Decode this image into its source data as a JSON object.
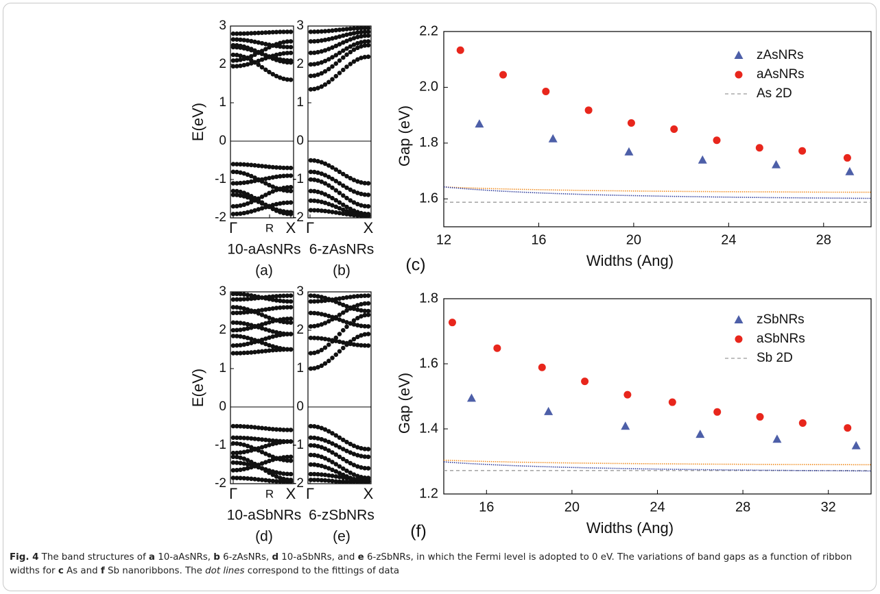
{
  "caption": {
    "fig_label": "Fig. 4",
    "t1": " The band structures of ",
    "l1": "a",
    "t2": " 10-aAsNRs, ",
    "l2": "b",
    "t3": " 6-zAsNRs, ",
    "l3": "d",
    "t4": " 10-aSbNRs, and ",
    "l4": "e",
    "t5": " 6-zSbNRs, in which the Fermi level is adopted to 0 eV. The variations of band gaps as a function of ribbon widths for ",
    "l5": "c",
    "t6": " As and ",
    "l6": "f",
    "t7": " Sb nanoribbons. The ",
    "emph": "dot lines",
    "t8": " correspond to the fittings of data"
  },
  "chart_data": [
    {
      "type": "scatter",
      "panel": "(a)",
      "name": "10-aAsNRs",
      "ylabel": "E(eV)",
      "ylim": [
        -2,
        3
      ],
      "yticks": [
        -2,
        -1,
        0,
        1,
        2,
        3
      ],
      "xticks": [
        "Γ",
        "R",
        "X"
      ],
      "fermi_level": 0,
      "bands_conduction": [
        [
          1.95,
          2.3
        ],
        [
          2.25,
          1.6
        ],
        [
          2.45,
          2.1
        ],
        [
          2.65,
          2.45
        ],
        [
          2.8,
          2.85
        ],
        [
          2.5,
          2.05
        ],
        [
          2.1,
          2.6
        ]
      ],
      "bands_valence": [
        [
          -0.6,
          -0.7
        ],
        [
          -0.8,
          -1.3
        ],
        [
          -1.1,
          -0.9
        ],
        [
          -1.4,
          -1.85
        ],
        [
          -1.7,
          -1.2
        ],
        [
          -1.9,
          -1.6
        ],
        [
          -1.3,
          -1.9
        ]
      ]
    },
    {
      "type": "scatter",
      "panel": "(b)",
      "name": "6-zAsNRs",
      "ylim": [
        -2,
        3
      ],
      "yticks": [
        -2,
        -1,
        0,
        1,
        2,
        3
      ],
      "xticks": [
        "Γ",
        "X"
      ],
      "fermi_level": 0,
      "bands_conduction": [
        [
          1.35,
          2.2
        ],
        [
          1.7,
          2.5
        ],
        [
          2.0,
          2.6
        ],
        [
          2.3,
          2.75
        ],
        [
          2.6,
          2.85
        ],
        [
          2.85,
          2.95
        ]
      ],
      "bands_valence": [
        [
          -0.5,
          -1.1
        ],
        [
          -0.8,
          -1.4
        ],
        [
          -1.0,
          -1.7
        ],
        [
          -1.3,
          -1.9
        ],
        [
          -1.55,
          -1.95
        ],
        [
          -1.8,
          -1.95
        ]
      ]
    },
    {
      "type": "scatter",
      "panel": "(c)",
      "xlabel": "Widths (Ang)",
      "ylabel": "Gap (eV)",
      "xlim": [
        12,
        30
      ],
      "ylim": [
        1.5,
        2.2
      ],
      "xticks": [
        12,
        16,
        20,
        24,
        28
      ],
      "yticks": [
        1.6,
        1.8,
        2.0,
        2.2
      ],
      "legend_position": "top-right",
      "series": [
        {
          "name": "zAsNRs",
          "marker": "triangle",
          "color": "#4d5fa8",
          "x": [
            13.5,
            16.6,
            19.8,
            22.9,
            26.0,
            29.1
          ],
          "y": [
            1.868,
            1.815,
            1.768,
            1.739,
            1.722,
            1.697
          ]
        },
        {
          "name": "aAsNRs",
          "marker": "circle",
          "color": "#e8261c",
          "x": [
            12.7,
            14.5,
            16.3,
            18.1,
            19.9,
            21.7,
            23.5,
            25.3,
            27.1,
            29.0
          ],
          "y": [
            2.133,
            2.045,
            1.985,
            1.918,
            1.872,
            1.85,
            1.81,
            1.783,
            1.772,
            1.747
          ]
        },
        {
          "name": "As 2D",
          "style": "dashed",
          "color": "#999999",
          "y": 1.588
        }
      ],
      "fits": [
        {
          "for": "zAsNRs",
          "color": "#f08a1c",
          "a": 1.62,
          "b": 3.3
        },
        {
          "for": "aAsNRs",
          "color": "#2c3a9a",
          "a": 1.594,
          "b": 7.05
        }
      ]
    },
    {
      "type": "scatter",
      "panel": "(d)",
      "name": "10-aSbNRs",
      "ylabel": "E(eV)",
      "ylim": [
        -2,
        3
      ],
      "yticks": [
        -2,
        -1,
        0,
        1,
        2,
        3
      ],
      "xticks": [
        "Γ",
        "R",
        "X"
      ],
      "fermi_level": 0,
      "bands_conduction": [
        [
          1.4,
          1.5
        ],
        [
          1.6,
          1.9
        ],
        [
          1.85,
          1.5
        ],
        [
          2.0,
          2.3
        ],
        [
          2.2,
          1.9
        ],
        [
          2.45,
          2.6
        ],
        [
          2.6,
          2.2
        ],
        [
          2.8,
          2.9
        ],
        [
          2.95,
          2.75
        ]
      ],
      "bands_valence": [
        [
          -0.5,
          -0.6
        ],
        [
          -0.8,
          -0.9
        ],
        [
          -0.95,
          -1.4
        ],
        [
          -1.2,
          -0.9
        ],
        [
          -1.45,
          -1.75
        ],
        [
          -1.65,
          -1.3
        ],
        [
          -1.85,
          -1.95
        ],
        [
          -1.3,
          -1.9
        ]
      ]
    },
    {
      "type": "scatter",
      "panel": "(e)",
      "name": "6-zSbNRs",
      "ylim": [
        -2,
        3
      ],
      "yticks": [
        -2,
        -1,
        0,
        1,
        2,
        3
      ],
      "xticks": [
        "Γ",
        "X"
      ],
      "fermi_level": 0,
      "bands_conduction": [
        [
          1.0,
          1.9
        ],
        [
          1.4,
          2.4
        ],
        [
          1.8,
          1.6
        ],
        [
          2.1,
          2.7
        ],
        [
          2.45,
          2.1
        ],
        [
          2.75,
          2.9
        ],
        [
          2.9,
          2.5
        ]
      ],
      "bands_valence": [
        [
          -0.5,
          -1.1
        ],
        [
          -0.8,
          -1.3
        ],
        [
          -1.0,
          -1.6
        ],
        [
          -1.25,
          -1.85
        ],
        [
          -1.5,
          -1.95
        ],
        [
          -1.75,
          -1.9
        ],
        [
          -1.9,
          -2.0
        ]
      ]
    },
    {
      "type": "scatter",
      "panel": "(f)",
      "xlabel": "Widths (Ang)",
      "ylabel": "Gap (eV)",
      "xlim": [
        14,
        34
      ],
      "ylim": [
        1.2,
        1.8
      ],
      "xticks": [
        16,
        20,
        24,
        28,
        32
      ],
      "yticks": [
        1.2,
        1.4,
        1.6,
        1.8
      ],
      "legend_position": "top-right",
      "series": [
        {
          "name": "zSbNRs",
          "marker": "triangle",
          "color": "#4d5fa8",
          "x": [
            15.3,
            18.9,
            22.5,
            26.0,
            29.6,
            33.3
          ],
          "y": [
            1.494,
            1.453,
            1.408,
            1.383,
            1.368,
            1.348
          ]
        },
        {
          "name": "aSbNRs",
          "marker": "circle",
          "color": "#e8261c",
          "x": [
            14.4,
            16.5,
            18.6,
            20.6,
            22.6,
            24.7,
            26.8,
            28.8,
            30.8,
            32.9
          ],
          "y": [
            1.727,
            1.648,
            1.589,
            1.546,
            1.505,
            1.482,
            1.452,
            1.437,
            1.418,
            1.403
          ]
        },
        {
          "name": "Sb 2D",
          "style": "dashed",
          "color": "#999999",
          "y": 1.272
        }
      ],
      "fits": [
        {
          "for": "zSbNRs",
          "color": "#f08a1c",
          "a": 1.287,
          "b": 3.3
        },
        {
          "for": "aSbNRs",
          "color": "#2c3a9a",
          "a": 1.265,
          "b": 6.6
        }
      ]
    }
  ]
}
